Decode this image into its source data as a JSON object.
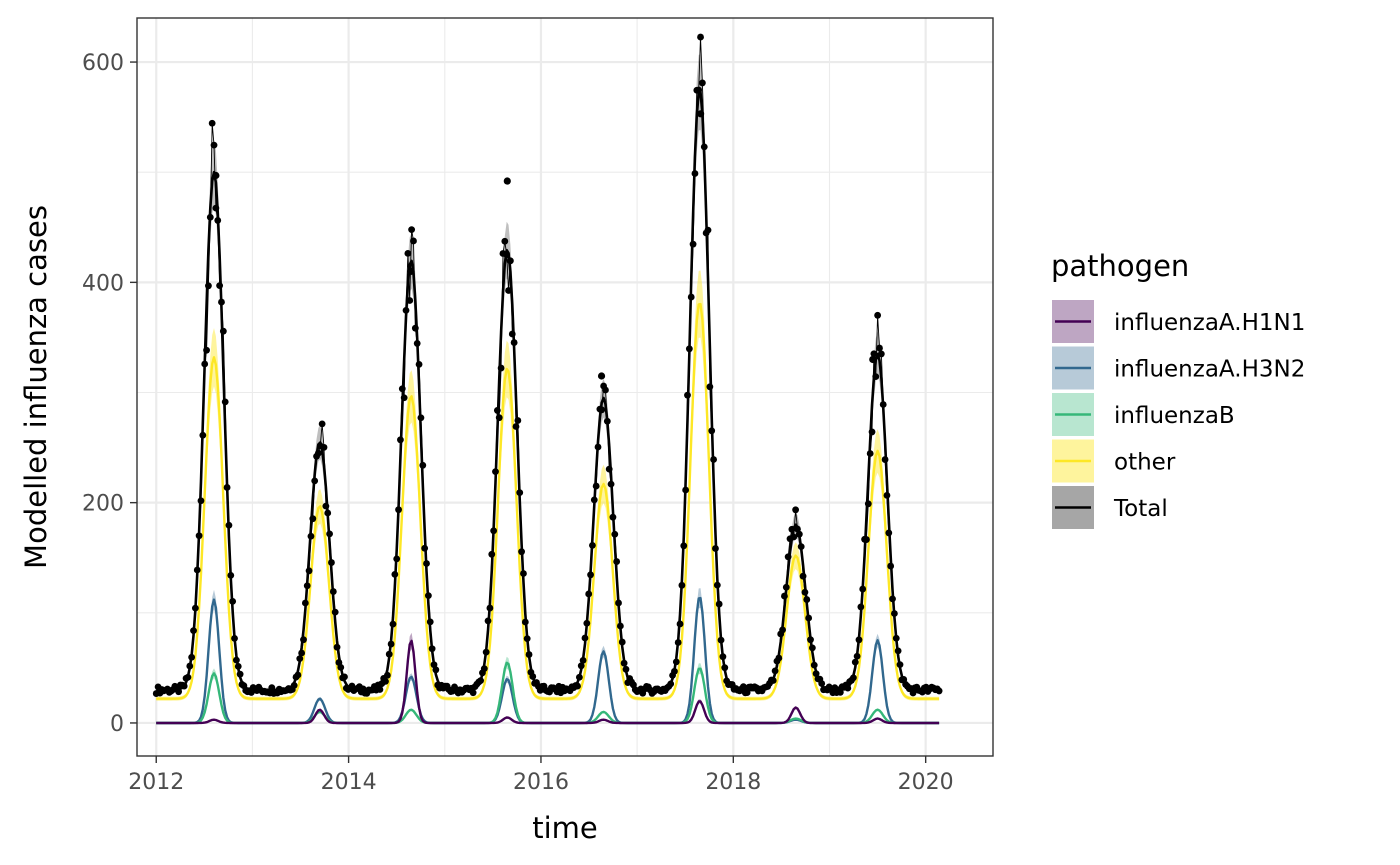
{
  "chart_data": {
    "type": "line",
    "title": "",
    "xlabel": "time",
    "ylabel": "Modelled influenza cases",
    "xlim": [
      2011.8,
      2020.7
    ],
    "ylim": [
      -30,
      640
    ],
    "x_ticks": [
      "2012",
      "2014",
      "2016",
      "2018",
      "2020"
    ],
    "y_ticks": [
      "0",
      "200",
      "400",
      "600"
    ],
    "grid": true,
    "legend": {
      "title": "pathogen",
      "position": "right",
      "entries": [
        "influenzaA.H1N1",
        "influenzaA.H3N2",
        "influenzaB",
        "other",
        "Total"
      ]
    },
    "colors": {
      "influenzaA.H1N1": "#440154",
      "influenzaA.H3N2": "#31688e",
      "influenzaB": "#35b779",
      "other": "#fde725",
      "Total": "#000000"
    },
    "season_peaks": {
      "x": [
        2012.6,
        2013.7,
        2014.65,
        2015.65,
        2016.65,
        2017.65,
        2018.65,
        2019.5
      ],
      "Total": [
        470,
        225,
        390,
        400,
        265,
        545,
        150,
        305
      ],
      "other": [
        310,
        175,
        275,
        300,
        195,
        360,
        130,
        225
      ],
      "influenzaA.H3N2": [
        112,
        22,
        42,
        40,
        65,
        115,
        3,
        75
      ],
      "influenzaB": [
        45,
        10,
        12,
        55,
        10,
        50,
        4,
        12
      ],
      "influenzaA.H1N1": [
        3,
        12,
        75,
        5,
        3,
        20,
        14,
        4
      ]
    },
    "observed_points_example": [
      {
        "x": 2012.62,
        "y": 497
      },
      {
        "x": 2014.65,
        "y": 410
      },
      {
        "x": 2015.65,
        "y": 492
      },
      {
        "x": 2016.63,
        "y": 315
      },
      {
        "x": 2017.66,
        "y": 553
      },
      {
        "x": 2019.45,
        "y": 330
      }
    ]
  }
}
